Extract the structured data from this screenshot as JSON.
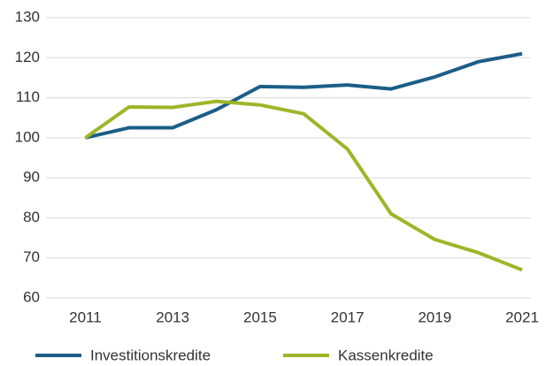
{
  "chart_data": {
    "type": "line",
    "x": [
      2011,
      2012,
      2013,
      2014,
      2015,
      2016,
      2017,
      2018,
      2019,
      2020,
      2021
    ],
    "series": [
      {
        "name": "Investitionskredite",
        "color": "#1b5e87",
        "values": [
          100,
          102.5,
          102.5,
          107,
          112.8,
          112.6,
          113.2,
          112.2,
          115.2,
          119,
          121
        ]
      },
      {
        "name": "Kassenkredite",
        "color": "#9db628",
        "values": [
          100,
          107.7,
          107.6,
          109.1,
          108.2,
          106,
          97.2,
          81,
          74.6,
          71.3,
          67
        ]
      }
    ],
    "xlim": [
      2010.1,
      2021.2
    ],
    "xticks": [
      2011,
      2013,
      2015,
      2017,
      2019,
      2021
    ],
    "ylim": [
      60,
      130
    ],
    "yticks": [
      60,
      70,
      80,
      90,
      100,
      110,
      120,
      130
    ],
    "grid": true,
    "legend": "bottom"
  }
}
